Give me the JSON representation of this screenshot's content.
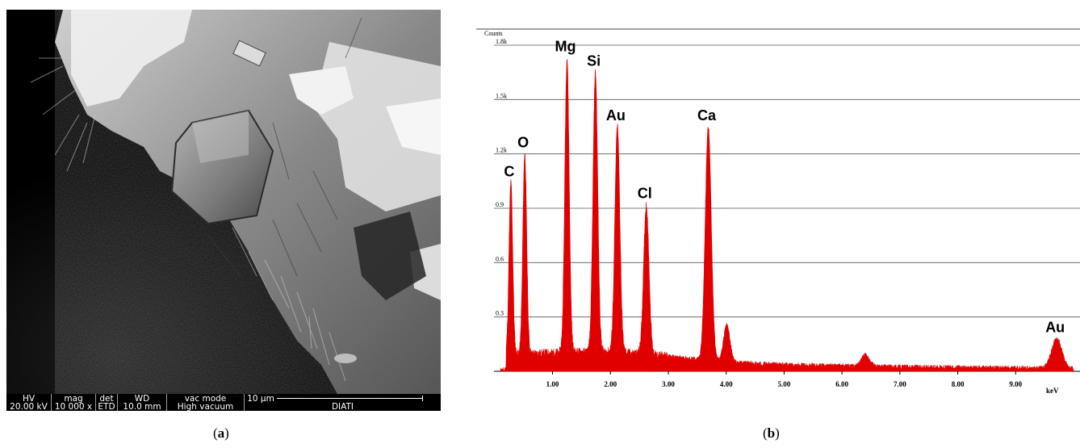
{
  "figure": {
    "panel_a_label": {
      "open": "(",
      "letter": "a",
      "close": ")"
    },
    "panel_b_label": {
      "open": "(",
      "letter": "b",
      "close": ")"
    }
  },
  "sem": {
    "databar": [
      {
        "header": "HV",
        "value": "20.00 kV"
      },
      {
        "header": "mag",
        "value": "10 000 x"
      },
      {
        "header": "det",
        "value": "ETD"
      },
      {
        "header": "WD",
        "value": "10.0 mm"
      },
      {
        "header": "vac mode",
        "value": "High vacuum"
      }
    ],
    "scale_bar_label": "10 μm",
    "footer_text": "DIATI"
  },
  "chart_data": {
    "type": "line",
    "title": "",
    "ylabel": "Counts",
    "xlabel": "keV",
    "xlim": [
      0.1,
      10.0
    ],
    "ylim": [
      0,
      1.8
    ],
    "y_unit": "k counts",
    "x_ticks": [
      1.0,
      2.0,
      3.0,
      4.0,
      5.0,
      6.0,
      7.0,
      8.0,
      9.0
    ],
    "x_tick_labels": [
      "1.00",
      "2.00",
      "3.00",
      "4.00",
      "5.00",
      "6.00",
      "7.00",
      "8.00",
      "9.00"
    ],
    "y_ticks": [
      0.3,
      0.6,
      0.9,
      1.2,
      1.5,
      1.8
    ],
    "y_tick_labels": [
      "0.3",
      "0.6",
      "0.9",
      "1.2k",
      "1.5k",
      "1.8k"
    ],
    "grid": true,
    "legend": "none",
    "series_color": "#e00000",
    "baseline": 0.07,
    "peaks": [
      {
        "label": "C",
        "x": 0.28,
        "y": 1.04
      },
      {
        "label": "O",
        "x": 0.52,
        "y": 1.2
      },
      {
        "label": "Mg",
        "x": 1.25,
        "y": 1.73
      },
      {
        "label": "Si",
        "x": 1.74,
        "y": 1.65
      },
      {
        "label": "Au",
        "x": 2.12,
        "y": 1.35
      },
      {
        "label": "Cl",
        "x": 2.62,
        "y": 0.92
      },
      {
        "label": "Ca",
        "x": 3.69,
        "y": 1.35
      },
      {
        "label": "",
        "x": 4.01,
        "y": 0.26
      },
      {
        "label": "",
        "x": 6.4,
        "y": 0.09
      },
      {
        "label": "Au",
        "x": 9.71,
        "y": 0.18
      }
    ]
  }
}
